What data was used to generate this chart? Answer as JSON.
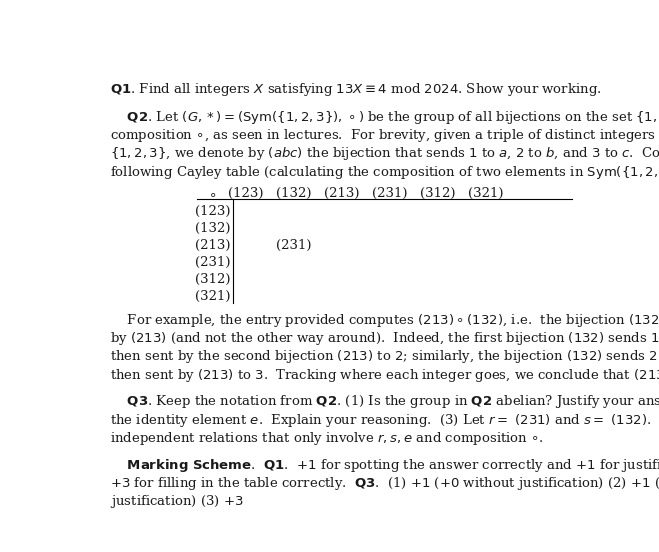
{
  "background_color": "#ffffff",
  "page_width": 6.59,
  "page_height": 5.52,
  "dpi": 100,
  "table_col_headers": [
    "(123)",
    "(132)",
    "(213)",
    "(231)",
    "(312)",
    "(321)"
  ],
  "table_row_headers": [
    "(123)",
    "(132)",
    "(213)",
    "(231)",
    "(312)",
    "(321)"
  ],
  "table_entry_row": 2,
  "table_entry_col": 1,
  "table_entry_value": "(231)",
  "font_size_body": 9.5,
  "text_color": "#1a1a1a"
}
